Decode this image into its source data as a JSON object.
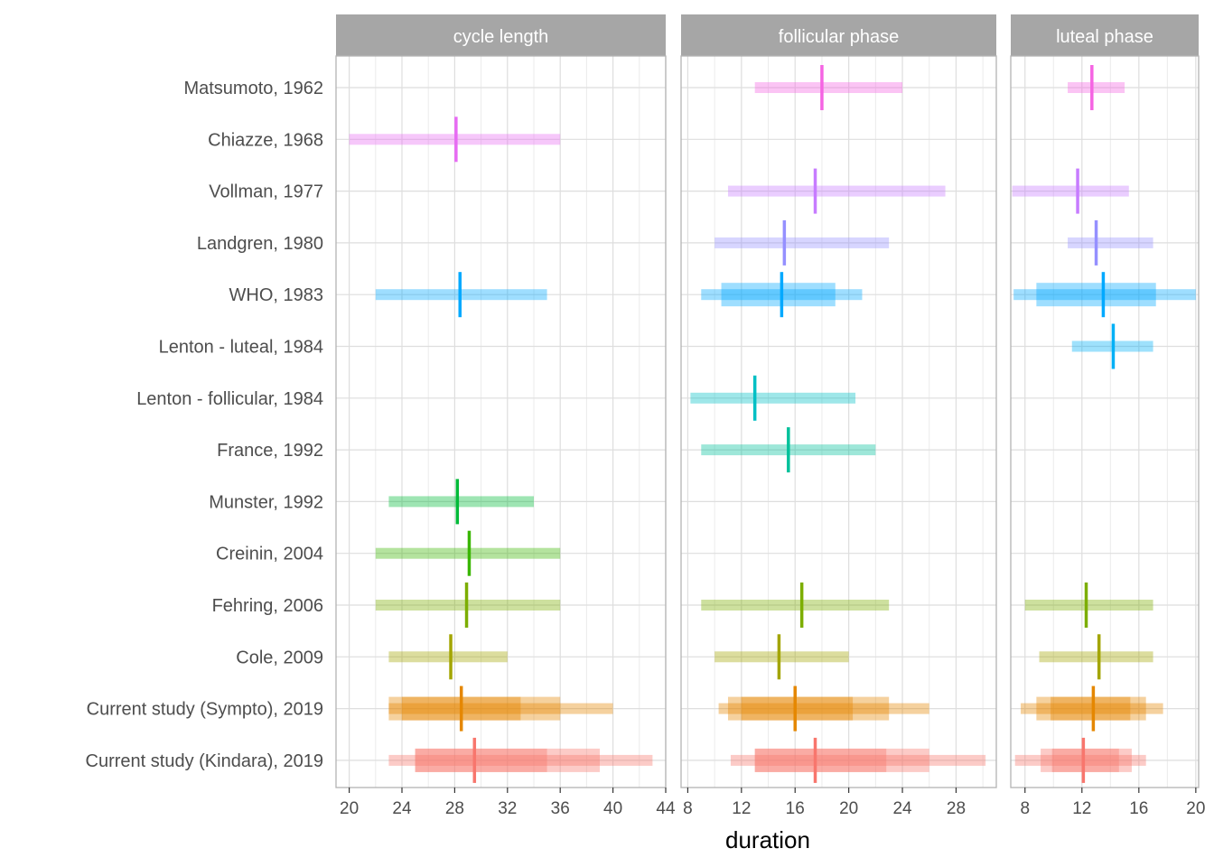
{
  "chart_data": {
    "type": "range",
    "xlabel": "duration",
    "studies": [
      "Matsumoto, 1962",
      "Chiazze, 1968",
      "Vollman, 1977",
      "Landgren, 1980",
      "WHO, 1983",
      "Lenton - luteal, 1984",
      "Lenton - follicular, 1984",
      "France, 1992",
      "Munster, 1992",
      "Creinin, 2004",
      "Fehring, 2006",
      "Cole, 2009",
      "Current study (Sympto), 2019",
      "Current study (Kindara), 2019"
    ],
    "colors": {
      "Matsumoto, 1962": "#f564e3",
      "Chiazze, 1968": "#e76bf3",
      "Vollman, 1977": "#c77cff",
      "Landgren, 1980": "#9590ff",
      "WHO, 1983": "#00a9ff",
      "Lenton - luteal, 1984": "#00b0f6",
      "Lenton - follicular, 1984": "#00bfc4",
      "France, 1992": "#00c19a",
      "Munster, 1992": "#00ba38",
      "Creinin, 2004": "#39b600",
      "Fehring, 2006": "#7cae00",
      "Cole, 2009": "#a3a500",
      "Current study (Sympto), 2019": "#e58700",
      "Current study (Kindara), 2019": "#f8766d"
    },
    "panels": [
      {
        "name": "cycle length",
        "xlim": [
          19,
          44
        ],
        "ticks": [
          20,
          24,
          28,
          32,
          36,
          40,
          44
        ],
        "minor": [
          22,
          26,
          30,
          34,
          38,
          42
        ],
        "rows": [
          {
            "study": "Chiazze, 1968",
            "median": 28.1,
            "ranges": [
              [
                20,
                36
              ]
            ]
          },
          {
            "study": "WHO, 1983",
            "median": 28.4,
            "ranges": [
              [
                22,
                35
              ]
            ]
          },
          {
            "study": "Munster, 1992",
            "median": 28.2,
            "ranges": [
              [
                23,
                34
              ]
            ]
          },
          {
            "study": "Creinin, 2004",
            "median": 29.1,
            "ranges": [
              [
                22,
                36
              ]
            ]
          },
          {
            "study": "Fehring, 2006",
            "median": 28.9,
            "ranges": [
              [
                22,
                36
              ]
            ]
          },
          {
            "study": "Cole, 2009",
            "median": 27.7,
            "ranges": [
              [
                23,
                32
              ]
            ]
          },
          {
            "study": "Current study (Sympto), 2019",
            "median": 28.5,
            "ranges": [
              [
                23,
                40
              ],
              [
                23,
                36
              ],
              [
                24,
                33
              ]
            ]
          },
          {
            "study": "Current study (Kindara), 2019",
            "median": 29.5,
            "ranges": [
              [
                23,
                43
              ],
              [
                25,
                39
              ],
              [
                25,
                35
              ]
            ]
          }
        ]
      },
      {
        "name": "follicular phase",
        "xlim": [
          7.5,
          31
        ],
        "ticks": [
          8,
          12,
          16,
          20,
          24,
          28
        ],
        "minor": [
          10,
          14,
          18,
          22,
          26,
          30
        ],
        "rows": [
          {
            "study": "Matsumoto, 1962",
            "median": 18,
            "ranges": [
              [
                13,
                24
              ]
            ]
          },
          {
            "study": "Vollman, 1977",
            "median": 17.5,
            "ranges": [
              [
                11,
                27.2
              ]
            ]
          },
          {
            "study": "Landgren, 1980",
            "median": 15.2,
            "ranges": [
              [
                10,
                23
              ]
            ]
          },
          {
            "study": "WHO, 1983",
            "median": 15,
            "ranges": [
              [
                9,
                21
              ],
              [
                10.5,
                19
              ]
            ]
          },
          {
            "study": "Lenton - follicular, 1984",
            "median": 13,
            "ranges": [
              [
                8.2,
                20.5
              ]
            ]
          },
          {
            "study": "France, 1992",
            "median": 15.5,
            "ranges": [
              [
                9,
                22
              ]
            ]
          },
          {
            "study": "Fehring, 2006",
            "median": 16.5,
            "ranges": [
              [
                9,
                23
              ]
            ]
          },
          {
            "study": "Cole, 2009",
            "median": 14.8,
            "ranges": [
              [
                10,
                20
              ]
            ]
          },
          {
            "study": "Current study (Sympto), 2019",
            "median": 16,
            "ranges": [
              [
                10.3,
                26
              ],
              [
                11,
                23
              ],
              [
                12,
                20.3
              ]
            ]
          },
          {
            "study": "Current study (Kindara), 2019",
            "median": 17.5,
            "ranges": [
              [
                11.2,
                30.2
              ],
              [
                13,
                26
              ],
              [
                13,
                22.8
              ]
            ]
          }
        ]
      },
      {
        "name": "luteal phase",
        "xlim": [
          7,
          20.2
        ],
        "ticks": [
          8,
          12,
          16,
          20
        ],
        "minor": [
          10,
          14,
          18
        ],
        "rows": [
          {
            "study": "Matsumoto, 1962",
            "median": 12.7,
            "ranges": [
              [
                11,
                15
              ]
            ]
          },
          {
            "study": "Vollman, 1977",
            "median": 11.7,
            "ranges": [
              [
                7.1,
                15.3
              ]
            ]
          },
          {
            "study": "Landgren, 1980",
            "median": 13,
            "ranges": [
              [
                11,
                17
              ]
            ]
          },
          {
            "study": "WHO, 1983",
            "median": 13.5,
            "ranges": [
              [
                7.2,
                20
              ],
              [
                8.8,
                17.2
              ]
            ]
          },
          {
            "study": "Lenton - luteal, 1984",
            "median": 14.2,
            "ranges": [
              [
                11.3,
                17
              ]
            ]
          },
          {
            "study": "Fehring, 2006",
            "median": 12.3,
            "ranges": [
              [
                8,
                17
              ]
            ]
          },
          {
            "study": "Cole, 2009",
            "median": 13.2,
            "ranges": [
              [
                9,
                17
              ]
            ]
          },
          {
            "study": "Current study (Sympto), 2019",
            "median": 12.8,
            "ranges": [
              [
                7.7,
                17.7
              ],
              [
                8.8,
                16.5
              ],
              [
                9.8,
                15.4
              ]
            ]
          },
          {
            "study": "Current study (Kindara), 2019",
            "median": 12.1,
            "ranges": [
              [
                7.3,
                16.5
              ],
              [
                9.1,
                15.5
              ],
              [
                9.9,
                14.6
              ]
            ]
          }
        ]
      }
    ]
  }
}
